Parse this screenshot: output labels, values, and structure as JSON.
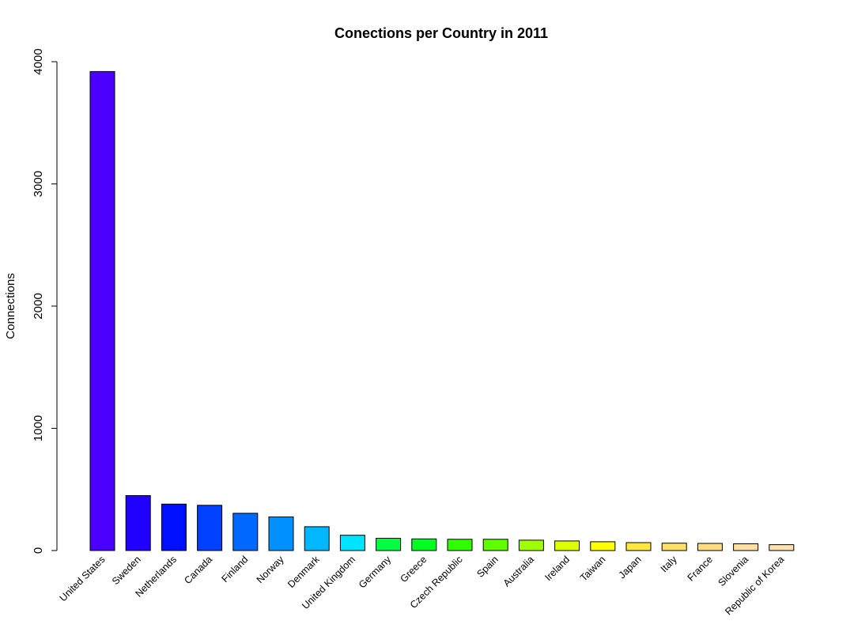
{
  "chart_data": {
    "type": "bar",
    "title": "Conections per Country in 2011",
    "xlabel": "",
    "ylabel": "Connections",
    "ylim": [
      0,
      4000
    ],
    "yticks": [
      0,
      1000,
      2000,
      3000,
      4000
    ],
    "grid": false,
    "legend": "none",
    "categories": [
      "United States",
      "Sweden",
      "Netherlands",
      "Canada",
      "Finland",
      "Norway",
      "Denmark",
      "United Kingdom",
      "Germany",
      "Greece",
      "Czech Republic",
      "Spain",
      "Australia",
      "Ireland",
      "Taiwan",
      "Japan",
      "Italy",
      "France",
      "Slovenia",
      "Republic of Korea"
    ],
    "values": [
      3920,
      450,
      380,
      370,
      305,
      275,
      195,
      125,
      100,
      95,
      92,
      92,
      85,
      78,
      72,
      65,
      60,
      58,
      55,
      48
    ],
    "colors": [
      "#4B00FF",
      "#2000FF",
      "#0010FF",
      "#0040FF",
      "#0068FF",
      "#0090FF",
      "#00B8FF",
      "#00E5FF",
      "#00FF40",
      "#00FF20",
      "#30FF00",
      "#60FF00",
      "#A0FF00",
      "#DDFF00",
      "#FFFF00",
      "#FFE640",
      "#FFE066",
      "#FFDC80",
      "#FFE0A0",
      "#FFE2B0"
    ]
  }
}
